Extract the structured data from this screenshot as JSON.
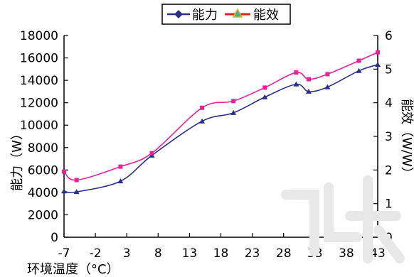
{
  "chart_data": {
    "type": "line",
    "x": [
      -7,
      -5,
      2,
      7,
      15,
      20,
      25,
      30,
      32,
      35,
      40,
      43
    ],
    "x_ticks": [
      -7,
      -2,
      3,
      8,
      13,
      18,
      23,
      28,
      33,
      38,
      43
    ],
    "xlim": [
      -7,
      43
    ],
    "xlabel": "环境温度（°C）",
    "ylabel": "能力（W）",
    "ylim": [
      0,
      18000
    ],
    "y_ticks": [
      0,
      2000,
      4000,
      6000,
      8000,
      10000,
      12000,
      14000,
      16000,
      18000
    ],
    "y2label": "能效（W/W）",
    "y2lim": [
      0,
      6
    ],
    "y2_ticks": [
      0,
      1,
      2,
      3,
      4,
      5,
      6
    ],
    "series": [
      {
        "name": "能力",
        "axis": "left",
        "color": "#2b2f8a",
        "marker": "triangle",
        "values": [
          4100,
          4050,
          5000,
          7300,
          10350,
          11100,
          12500,
          13650,
          13000,
          13400,
          14850,
          15400
        ]
      },
      {
        "name": "能效",
        "axis": "right",
        "color": "#e8219a",
        "marker": "square",
        "values": [
          1.95,
          1.7,
          2.1,
          2.5,
          3.85,
          4.05,
          4.45,
          4.9,
          4.7,
          4.85,
          5.25,
          5.5
        ]
      }
    ],
    "legend": {
      "position": "top",
      "items": [
        {
          "label": "能力",
          "marker": "diamond",
          "color": "#2b2f8a"
        },
        {
          "label": "能效",
          "marker": "triangle",
          "color": "#e02020"
        }
      ]
    },
    "grid": false
  }
}
